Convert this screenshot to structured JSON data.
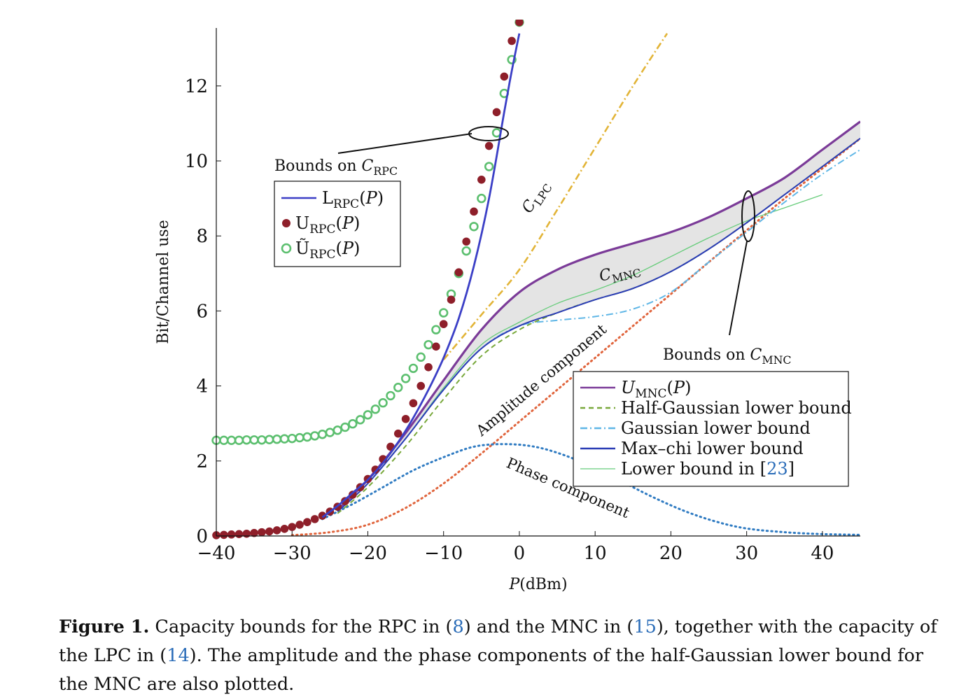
{
  "chart_data": {
    "type": "line",
    "xlabel": "P(dBm)",
    "ylabel": "Bit/Channel use",
    "xlim": [
      -40,
      45
    ],
    "ylim": [
      0,
      13.4
    ],
    "xticks": [
      -40,
      -30,
      -20,
      -10,
      0,
      10,
      20,
      30,
      40
    ],
    "yticks": [
      0,
      2,
      4,
      6,
      8,
      10,
      12
    ],
    "grid": false,
    "legends": [
      {
        "placement": "upper-left",
        "entries": [
          {
            "label": "L_RPC(P)",
            "text": "LRPC(P)",
            "color": "#3b3fc6",
            "style": "solid"
          },
          {
            "label": "U_RPC(P)",
            "text": "URPC(P)",
            "color": "#8e1f2a",
            "style": "filled-marker"
          },
          {
            "label": "Ũ_RPC(P)",
            "text": "ŨRPC(P)",
            "color": "#5cbf6f",
            "style": "open-marker"
          }
        ]
      },
      {
        "placement": "lower-right",
        "entries": [
          {
            "label": "U_MNC(P)",
            "text": "UMNC(P)",
            "color": "#7b3b98",
            "style": "solid"
          },
          {
            "label": "Half-Gaussian lower bound",
            "color": "#78a83b",
            "style": "dashed"
          },
          {
            "label": "Gaussian lower bound",
            "color": "#5fb6e6",
            "style": "dashdot"
          },
          {
            "label": "Max–chi lower bound",
            "color": "#2a3cb5",
            "style": "solid"
          },
          {
            "label": "Lower bound in [23]",
            "color": "#66cc7a",
            "style": "solid"
          }
        ]
      }
    ],
    "annotations": [
      {
        "text": "Bounds on C_RPC",
        "pre": "Bounds on ",
        "sym": "C",
        "sub": "RPC"
      },
      {
        "text": "Bounds on C_MNC",
        "pre": "Bounds on ",
        "sym": "C",
        "sub": "MNC"
      },
      {
        "text": "C_LPC",
        "sym": "C",
        "sub": "LPC"
      },
      {
        "text": "C_MNC",
        "sym": "C",
        "sub": "MNC"
      },
      {
        "text": "Amplitude component"
      },
      {
        "text": "Phase component"
      }
    ],
    "series": [
      {
        "name": "L_RPC(P)",
        "color": "#3b3fc6",
        "style": "solid",
        "x": [
          -26,
          -24,
          -22,
          -20,
          -18,
          -16,
          -14,
          -12,
          -10,
          -8,
          -6,
          -4,
          -2,
          -1,
          0
        ],
        "y": [
          0.5,
          0.8,
          1.15,
          1.5,
          1.95,
          2.5,
          3.15,
          3.9,
          4.75,
          5.8,
          7.2,
          9.0,
          11.3,
          12.4,
          13.4
        ]
      },
      {
        "name": "U_RPC(P)",
        "color": "#8e1f2a",
        "style": "filled-marker",
        "x": [
          -40,
          -39,
          -38,
          -37,
          -36,
          -35,
          -34,
          -33,
          -32,
          -31,
          -30,
          -29,
          -28,
          -27,
          -26,
          -25,
          -24,
          -23,
          -22,
          -21,
          -20,
          -19,
          -18,
          -17,
          -16,
          -15,
          -14,
          -13,
          -12,
          -11,
          -10,
          -9,
          -8,
          -7,
          -6,
          -5,
          -4,
          -3,
          -2,
          -1,
          0
        ],
        "y": [
          0.02,
          0.03,
          0.04,
          0.05,
          0.06,
          0.08,
          0.1,
          0.12,
          0.15,
          0.19,
          0.24,
          0.3,
          0.37,
          0.45,
          0.54,
          0.65,
          0.78,
          0.93,
          1.1,
          1.3,
          1.52,
          1.77,
          2.05,
          2.38,
          2.73,
          3.12,
          3.54,
          4.0,
          4.5,
          5.05,
          5.65,
          6.3,
          7.03,
          7.85,
          8.65,
          9.5,
          10.4,
          11.3,
          12.25,
          13.2,
          13.7
        ]
      },
      {
        "name": "Ũ_RPC(P)",
        "color": "#5cbf6f",
        "style": "open-marker",
        "x": [
          -40,
          -39,
          -38,
          -37,
          -36,
          -35,
          -34,
          -33,
          -32,
          -31,
          -30,
          -29,
          -28,
          -27,
          -26,
          -25,
          -24,
          -23,
          -22,
          -21,
          -20,
          -19,
          -18,
          -17,
          -16,
          -15,
          -14,
          -13,
          -12,
          -11,
          -10,
          -9,
          -8,
          -7,
          -6,
          -5,
          -4,
          -3,
          -2,
          -1,
          0
        ],
        "y": [
          2.55,
          2.55,
          2.55,
          2.55,
          2.56,
          2.56,
          2.56,
          2.57,
          2.58,
          2.59,
          2.6,
          2.62,
          2.64,
          2.67,
          2.71,
          2.76,
          2.82,
          2.9,
          2.99,
          3.1,
          3.23,
          3.38,
          3.55,
          3.74,
          3.96,
          4.2,
          4.47,
          4.77,
          5.1,
          5.5,
          5.95,
          6.45,
          7.0,
          7.6,
          8.25,
          9.0,
          9.85,
          10.75,
          11.8,
          12.7,
          13.7
        ]
      },
      {
        "name": "C_LPC",
        "color": "#e2b437",
        "style": "dashdot",
        "x": [
          -10,
          -5,
          0,
          5,
          10,
          15,
          19.5
        ],
        "y": [
          4.7,
          5.9,
          7.1,
          8.7,
          10.35,
          12.0,
          13.4
        ]
      },
      {
        "name": "U_MNC(P)",
        "color": "#7b3b98",
        "style": "solid",
        "x": [
          -24,
          -20,
          -15,
          -10,
          -5,
          0,
          5,
          10,
          15,
          20,
          25,
          30,
          35,
          40,
          45
        ],
        "y": [
          0.7,
          1.5,
          2.75,
          4.15,
          5.5,
          6.5,
          7.1,
          7.5,
          7.8,
          8.1,
          8.5,
          9.0,
          9.55,
          10.3,
          11.05
        ]
      },
      {
        "name": "Max–chi lower bound",
        "color": "#2a3cb5",
        "style": "solid",
        "x": [
          -24,
          -20,
          -15,
          -10,
          -5,
          0,
          5,
          10,
          15,
          20,
          25,
          30,
          35,
          40,
          45
        ],
        "y": [
          0.65,
          1.4,
          2.6,
          3.9,
          5.0,
          5.6,
          5.95,
          6.3,
          6.6,
          7.05,
          7.65,
          8.35,
          9.1,
          9.85,
          10.6
        ]
      },
      {
        "name": "Half-Gaussian lower bound",
        "color": "#78a83b",
        "style": "dashed",
        "x": [
          -24,
          -20,
          -15,
          -10,
          -5,
          0,
          5,
          10,
          15,
          20,
          25,
          30,
          35,
          40,
          45
        ],
        "y": [
          0.6,
          1.3,
          2.4,
          3.65,
          4.8,
          5.5,
          5.95,
          6.3,
          6.6,
          7.05,
          7.65,
          8.35,
          9.1,
          9.85,
          10.6
        ]
      },
      {
        "name": "Gaussian lower bound",
        "color": "#5fb6e6",
        "style": "dashdot",
        "x": [
          -24,
          -20,
          -15,
          -10,
          -5,
          0,
          5,
          10,
          15,
          20,
          25,
          30,
          35,
          40,
          45
        ],
        "y": [
          0.65,
          1.4,
          2.6,
          3.9,
          5.0,
          5.6,
          5.75,
          5.85,
          6.05,
          6.5,
          7.3,
          8.1,
          8.9,
          9.65,
          10.3
        ]
      },
      {
        "name": "Lower bound in [23]",
        "color": "#66cc7a",
        "style": "solid",
        "x": [
          -24,
          -20,
          -15,
          -10,
          -5,
          0,
          5,
          10,
          15,
          20,
          25,
          30,
          35,
          40
        ],
        "y": [
          0.65,
          1.4,
          2.6,
          3.95,
          5.1,
          5.7,
          6.2,
          6.55,
          6.95,
          7.45,
          7.95,
          8.4,
          8.75,
          9.1
        ]
      },
      {
        "name": "Amplitude component",
        "color": "#e0643c",
        "style": "dotted",
        "x": [
          -30,
          -25,
          -20,
          -15,
          -10,
          -5,
          0,
          5,
          10,
          15,
          20,
          25,
          30,
          35,
          40,
          45
        ],
        "y": [
          0.02,
          0.1,
          0.3,
          0.75,
          1.4,
          2.2,
          3.05,
          3.9,
          4.75,
          5.6,
          6.45,
          7.3,
          8.15,
          9.0,
          9.8,
          10.6
        ]
      },
      {
        "name": "Phase component",
        "color": "#2f7bc2",
        "style": "dotted",
        "x": [
          -26,
          -22,
          -18,
          -14,
          -10,
          -6,
          -2,
          2,
          6,
          10,
          14,
          18,
          22,
          26,
          30,
          35,
          40,
          45
        ],
        "y": [
          0.45,
          0.85,
          1.3,
          1.75,
          2.1,
          2.38,
          2.45,
          2.38,
          2.15,
          1.8,
          1.4,
          1.0,
          0.65,
          0.38,
          0.2,
          0.1,
          0.05,
          0.03
        ]
      }
    ]
  },
  "caption": {
    "label": "Figure 1.",
    "parts": [
      " Capacity bounds for the RPC in (",
      "8",
      ") and the MNC in (",
      "15",
      "), together with the capacity of the LPC in (",
      "14",
      "). The amplitude and the phase components of the half-Gaussian lower bound for the MNC are also plotted."
    ]
  }
}
